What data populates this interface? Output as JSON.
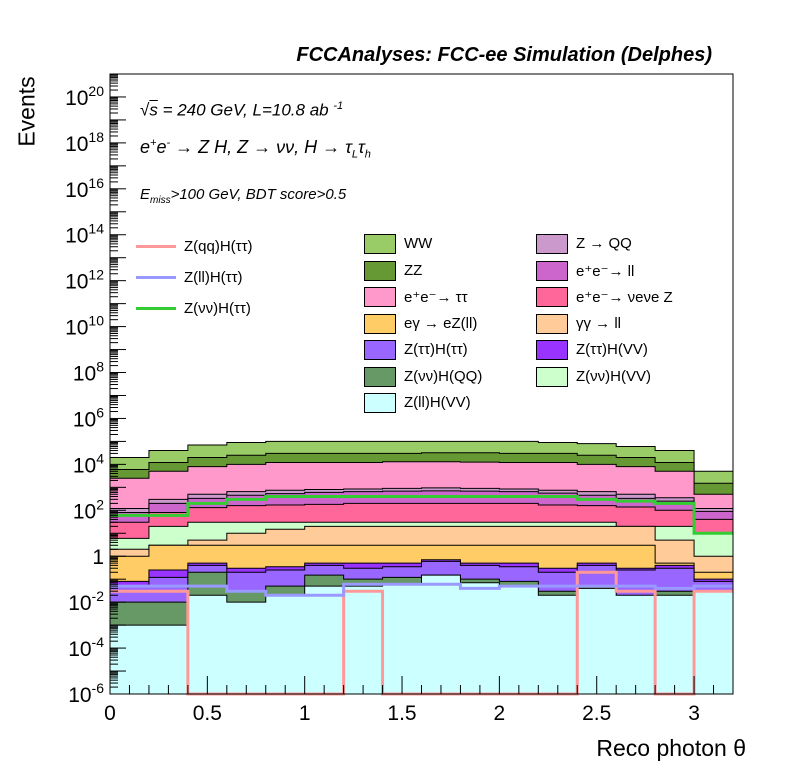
{
  "header": {
    "title": "FCCAnalyses: FCC-ee Simulation (Delphes)"
  },
  "annotations": {
    "energy": "√s = 240 GeV, L=10.8 ab⁻¹",
    "process": "e⁺e⁻ → Z H, Z → νν, H → τLτh",
    "cuts": "Emiss>100 GeV, BDT score>0.5"
  },
  "chart_data": {
    "type": "area",
    "subtype": "stacked-histogram-with-signal-lines",
    "title": "FCCAnalyses: FCC-ee Simulation (Delphes)",
    "xlabel": "Reco photon θ",
    "ylabel": "Events",
    "y_scale": "log",
    "xlim": [
      0,
      3.2
    ],
    "ylim": [
      1e-06,
      1e+21
    ],
    "x_ticks": [
      0,
      0.5,
      1,
      1.5,
      2,
      2.5,
      3
    ],
    "x_tick_labels": [
      "0",
      "0.5",
      "1",
      "1.5",
      "2",
      "2.5",
      "3"
    ],
    "y_ticks": [
      1e-06,
      0.0001,
      0.01,
      1,
      100.0,
      10000.0,
      1000000.0,
      100000000.0,
      10000000000.0,
      1000000000000.0,
      100000000000000.0,
      1e+16,
      1e+18,
      1e+20
    ],
    "y_tick_labels": [
      "10^-6",
      "10^-4",
      "10^-2",
      "1",
      "10^2",
      "10^4",
      "10^6",
      "10^8",
      "10^10",
      "10^12",
      "10^14",
      "10^16",
      "10^18",
      "10^20"
    ],
    "bin_edges": [
      0,
      0.2,
      0.4,
      0.6,
      0.8,
      1.0,
      1.2,
      1.4,
      1.6,
      1.8,
      2.0,
      2.2,
      2.4,
      2.6,
      2.8,
      3.0,
      3.2
    ],
    "stacked_cumulative": [
      {
        "name": "Z(ll)H(VV)",
        "color": "#ccffff",
        "values": [
          0.001,
          0.001,
          0.02,
          0.01,
          0.02,
          0.05,
          0.05,
          0.06,
          0.15,
          0.07,
          0.05,
          0.02,
          0.04,
          0.02,
          0.02,
          0.03
        ]
      },
      {
        "name": "Z(νν)H(QQ)",
        "color": "#669966",
        "values": [
          0.01,
          0.01,
          0.2,
          0.03,
          0.05,
          0.15,
          0.1,
          0.12,
          0.15,
          0.1,
          0.08,
          0.03,
          0.05,
          0.01,
          0.03,
          0.01
        ]
      },
      {
        "name": "Z(ττ)H(ττ)",
        "color": "#9966ff",
        "values": [
          0.05,
          0.12,
          0.4,
          0.2,
          0.25,
          0.4,
          0.3,
          0.35,
          0.6,
          0.4,
          0.35,
          0.2,
          0.4,
          0.25,
          0.3,
          0.08
        ]
      },
      {
        "name": "Z(ττ)H(VV)",
        "color": "#9933ff",
        "values": [
          0.08,
          0.25,
          0.5,
          0.3,
          0.35,
          0.5,
          0.5,
          0.5,
          0.7,
          0.5,
          0.5,
          0.3,
          0.5,
          0.3,
          0.4,
          0.1
        ]
      },
      {
        "name": "eγ → eZ(ll)",
        "color": "#ffcc66",
        "values": [
          1,
          3,
          3,
          3,
          3,
          3,
          3,
          3,
          3,
          3,
          3,
          3,
          3,
          3,
          0.5,
          0.2
        ]
      },
      {
        "name": "γγ → ll",
        "color": "#ffcc99",
        "values": [
          2,
          3,
          5,
          10,
          15,
          20,
          20,
          20,
          20,
          20,
          20,
          20,
          20,
          20,
          5,
          1
        ]
      },
      {
        "name": "Z(νν)H(VV)",
        "color": "#ccffcc",
        "values": [
          6,
          20,
          30,
          30,
          30,
          30,
          30,
          30,
          30,
          30,
          30,
          30,
          30,
          20,
          20,
          10
        ]
      },
      {
        "name": "e⁺e⁻→ νeνe Z",
        "color": "#ff6699",
        "values": [
          30,
          80,
          130,
          160,
          170,
          180,
          200,
          200,
          200,
          200,
          200,
          170,
          160,
          140,
          100,
          40
        ]
      },
      {
        "name": "e⁺e⁻→ ll",
        "color": "#cc66cc",
        "values": [
          80,
          200,
          330,
          450,
          530,
          600,
          650,
          680,
          700,
          680,
          650,
          560,
          450,
          330,
          250,
          90
        ]
      },
      {
        "name": "Z → QQ",
        "color": "#cc99cc",
        "values": [
          120,
          300,
          500,
          650,
          750,
          800,
          850,
          900,
          950,
          900,
          850,
          750,
          650,
          500,
          350,
          120
        ]
      },
      {
        "name": "e⁺e⁻→ ττ",
        "color": "#ff99cc",
        "values": [
          2500,
          5000,
          8000,
          10000,
          12000,
          12000,
          12000,
          13000,
          13000,
          12500,
          12000,
          12000,
          10000,
          8000,
          5000,
          500
        ]
      },
      {
        "name": "ZZ",
        "color": "#669933",
        "values": [
          6000,
          12000,
          20000,
          25000,
          30000,
          30000,
          30000,
          30000,
          32000,
          32000,
          30000,
          30000,
          25000,
          20000,
          12000,
          1500
        ]
      },
      {
        "name": "WW",
        "color": "#99cc66",
        "values": [
          20000,
          40000,
          70000,
          90000,
          100000,
          100000,
          100000,
          100000,
          100000,
          100000,
          100000,
          90000,
          80000,
          60000,
          40000,
          5000
        ]
      }
    ],
    "lines": [
      {
        "name": "Z(qq)H(ττ)",
        "color": "#ff9999",
        "values": [
          0.03,
          0.03,
          1e-06,
          1e-06,
          1e-06,
          1e-06,
          0.03,
          1e-06,
          1e-06,
          1e-06,
          1e-06,
          1e-06,
          0.2,
          0.03,
          1e-06,
          0.03
        ]
      },
      {
        "name": "Z(ll)H(ττ)",
        "color": "#9999ff",
        "values": [
          0.05,
          0.05,
          0.05,
          0.03,
          0.02,
          0.02,
          0.06,
          0.06,
          0.06,
          0.04,
          0.05,
          0.05,
          0.05,
          0.05,
          0.04,
          0.05
        ]
      },
      {
        "name": "Z(νν)H(ττ)",
        "color": "#33cc33",
        "values": [
          60,
          60,
          200,
          300,
          400,
          400,
          400,
          400,
          400,
          400,
          400,
          400,
          300,
          250,
          200,
          10
        ]
      }
    ],
    "legend": {
      "lines": [
        "Z(qq)H(ττ)",
        "Z(ll)H(ττ)",
        "Z(νν)H(ττ)"
      ],
      "col1": [
        "WW",
        "ZZ",
        "e⁺e⁻→ ττ",
        "eγ → eZ(ll)",
        "Z(ττ)H(ττ)",
        "Z(νν)H(QQ)",
        "Z(ll)H(VV)"
      ],
      "col2": [
        "Z → QQ",
        "e⁺e⁻→ ll",
        "e⁺e⁻→ νeνe Z",
        "γγ → ll",
        "Z(ττ)H(VV)",
        "Z(νν)H(VV)"
      ]
    }
  }
}
